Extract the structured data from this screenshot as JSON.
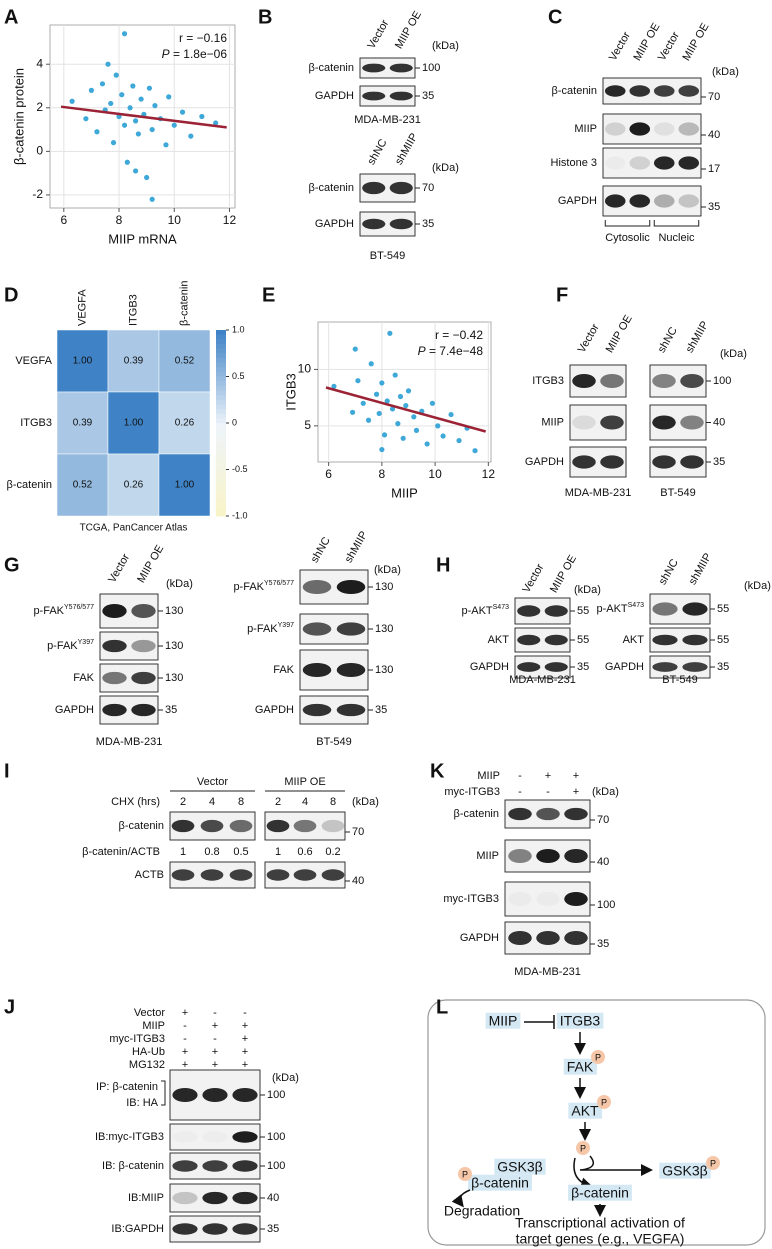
{
  "panels": {
    "A": {
      "letter": "A",
      "xlabel": "MIIP mRNA",
      "ylabel": "β-catenin  protein",
      "r_label": "r = −0.16",
      "p_symbol": "P",
      "p_text": " = 1.8e−06",
      "xlim": [
        5.5,
        12.2
      ],
      "ylim": [
        -2.6,
        5.8
      ],
      "xticks": [
        6,
        8,
        10,
        12
      ],
      "yticks": [
        -2,
        0,
        2,
        4
      ],
      "color": "#3ea8d8",
      "fit_color": "#9b2335",
      "x": [
        6.3,
        6.8,
        7.0,
        7.2,
        7.4,
        7.5,
        7.7,
        7.8,
        7.9,
        8.0,
        8.1,
        8.2,
        8.3,
        8.4,
        8.5,
        8.6,
        8.7,
        8.8,
        8.9,
        9.0,
        9.1,
        9.2,
        9.3,
        9.5,
        9.7,
        9.8,
        10.0,
        10.3,
        10.6,
        11.0,
        11.5,
        8.2,
        9.2,
        7.6,
        8.6
      ],
      "y": [
        2.3,
        1.5,
        2.8,
        0.9,
        3.1,
        1.9,
        2.2,
        0.4,
        3.5,
        1.6,
        2.6,
        1.2,
        -0.5,
        2.0,
        3.0,
        1.4,
        0.8,
        2.4,
        1.7,
        -1.2,
        2.9,
        1.0,
        2.1,
        1.5,
        0.3,
        2.5,
        1.2,
        1.8,
        0.7,
        1.6,
        1.3,
        5.4,
        -2.2,
        4.0,
        -0.9
      ],
      "fit": {
        "x": [
          5.9,
          11.9
        ],
        "y": [
          2.05,
          1.1
        ]
      }
    },
    "B": {
      "letter": "B",
      "blots": [
        {
          "lanes": [
            "Vector",
            "MIIP OE"
          ],
          "kda_header": "(kDa)",
          "rows": [
            {
              "label": "β-catenin",
              "kda": 100
            },
            {
              "label": "GAPDH",
              "kda": 35
            }
          ],
          "cell": "MDA-MB-231"
        },
        {
          "lanes": [
            "shNC",
            "shMIIP"
          ],
          "kda_header": "(kDa)",
          "rows": [
            {
              "label": "β-catenin",
              "kda": 70
            },
            {
              "label": "GAPDH",
              "kda": 35
            }
          ],
          "cell": "BT-549"
        }
      ]
    },
    "C": {
      "letter": "C",
      "blots": [
        {
          "lanes": [
            "Vector",
            "MIIP OE",
            "Vector",
            "MIIP OE"
          ],
          "kda_header": "(kDa)",
          "rows": [
            {
              "label": "β-catenin",
              "kda": 70
            },
            {
              "label": "MIIP",
              "kda": 40
            },
            {
              "label": "Histone 3",
              "kda": 17
            },
            {
              "label": "GAPDH",
              "kda": 35
            }
          ]
        }
      ],
      "groups": [
        "Cytosolic",
        "Nucleic"
      ]
    },
    "D": {
      "letter": "D",
      "columns": [
        "VEGFA",
        "ITGB3",
        "β-catenin"
      ],
      "rows": [
        "VEGFA",
        "ITGB3",
        "β-catenin"
      ],
      "values": [
        [
          1,
          0.39,
          0.52
        ],
        [
          0.39,
          1,
          0.26
        ],
        [
          0.52,
          0.26,
          1
        ]
      ],
      "value_labels": [
        [
          "1.00",
          "0.39",
          "0.52"
        ],
        [
          "0.39",
          "1.00",
          "0.26"
        ],
        [
          "0.52",
          "0.26",
          "1.00"
        ]
      ],
      "colorbar_lim": [
        -1,
        1
      ],
      "colorbar_ticks": [
        {
          "value": 1,
          "label": "1.0"
        },
        0.5,
        0,
        -0.5,
        {
          "value": -1,
          "label": "-1.0"
        }
      ],
      "colormap": [
        "#f8f4c6",
        "#eef4fa",
        "#3f83c6"
      ],
      "caption": "TCGA, PanCancer Atlas"
    },
    "E": {
      "letter": "E",
      "xlabel": "MIIP",
      "ylabel": "ITGB3",
      "r_label": "r = −0.42",
      "p_symbol": "P",
      "p_text": " = 7.4e−48",
      "xlim": [
        5.6,
        12.1
      ],
      "ylim": [
        1.8,
        14.2
      ],
      "xticks": [
        6,
        8,
        10,
        12
      ],
      "yticks": [
        5,
        10
      ],
      "color": "#3ea8d8",
      "fit_color": "#9b2335",
      "x": [
        6.2,
        6.9,
        7.1,
        7.3,
        7.5,
        7.6,
        7.8,
        7.9,
        8.0,
        8.1,
        8.2,
        8.3,
        8.4,
        8.5,
        8.6,
        8.7,
        8.8,
        8.9,
        9.0,
        9.2,
        9.3,
        9.5,
        9.7,
        9.9,
        10.1,
        10.3,
        10.6,
        10.9,
        11.2,
        11.5,
        7.0,
        8.0
      ],
      "y": [
        8.5,
        6.2,
        9.0,
        7.0,
        5.5,
        10.5,
        7.8,
        6.1,
        8.8,
        4.2,
        7.2,
        13.2,
        6.5,
        9.5,
        5.2,
        7.6,
        3.9,
        6.8,
        8.1,
        5.8,
        4.6,
        6.3,
        3.4,
        7.0,
        5.0,
        4.1,
        6.0,
        3.7,
        4.8,
        2.8,
        11.8,
        2.9
      ],
      "fit": {
        "x": [
          5.9,
          11.9
        ],
        "y": [
          8.4,
          4.5
        ]
      }
    },
    "F": {
      "letter": "F",
      "blots": [
        {
          "lanes": [
            "Vector",
            "MIIP OE"
          ],
          "rows": [
            {
              "label": "ITGB3"
            },
            {
              "label": "MIIP"
            },
            {
              "label": "GAPDH"
            }
          ],
          "cell": "MDA-MB-231"
        },
        {
          "lanes": [
            "shNC",
            "shMIIP"
          ],
          "kda_header": "(kDa)",
          "rows": [
            {
              "kda": 100
            },
            {
              "kda": 40
            },
            {
              "kda": 35
            }
          ],
          "cell": "BT-549"
        }
      ]
    },
    "G": {
      "letter": "G",
      "blots": [
        {
          "lanes": [
            "Vector",
            "MIIP OE"
          ],
          "kda_header": "(kDa)",
          "rows": [
            {
              "label": "p-FAK",
              "sup": "Y576/577",
              "kda": 130
            },
            {
              "label": "p-FAK",
              "sup": "Y397",
              "kda": 130
            },
            {
              "label": "FAK",
              "kda": 130
            },
            {
              "label": "GAPDH",
              "kda": 35
            }
          ],
          "cell": "MDA-MB-231"
        },
        {
          "lanes": [
            "shNC",
            "shMIIP"
          ],
          "kda_header": "(kDa)",
          "rows": [
            {
              "label": "p-FAK",
              "sup": "Y576/577",
              "kda": 130
            },
            {
              "label": "p-FAK",
              "sup": "Y397",
              "kda": 130
            },
            {
              "label": "FAK",
              "kda": 130
            },
            {
              "label": "GAPDH",
              "kda": 35
            }
          ],
          "cell": "BT-549"
        }
      ]
    },
    "H": {
      "letter": "H",
      "blots": [
        {
          "lanes": [
            "Vector",
            "MIIP OE"
          ],
          "kda_header": "(kDa)",
          "rows": [
            {
              "label": "p-AKT",
              "sup": "S473",
              "kda": 55
            },
            {
              "label": "AKT",
              "kda": 55
            },
            {
              "label": "GAPDH",
              "kda": 35
            }
          ],
          "cell": "MDA-MB-231"
        },
        {
          "lanes": [
            "shNC",
            "shMIIP"
          ],
          "kda_header": "(kDa)",
          "rows": [
            {
              "label": "p-AKT",
              "sup": "S473",
              "kda": 55
            },
            {
              "label": "AKT",
              "kda": 55
            },
            {
              "label": "GAPDH",
              "kda": 35
            }
          ],
          "cell": "BT-549"
        }
      ]
    },
    "I": {
      "letter": "I",
      "groups": [
        "Vector",
        "MIIP OE"
      ],
      "chx_label": "CHX (hrs)",
      "chx": [
        2,
        4,
        8,
        2,
        4,
        8
      ],
      "blots": [
        {
          "kda_header": "(kDa)",
          "rows": [
            {
              "label": "β-catenin",
              "kda": 70
            },
            {
              "label": "ACTB",
              "kda": 40
            }
          ]
        }
      ],
      "ratio_label": "β-catenin/ACTB",
      "ratios": [
        1,
        0.8,
        0.5,
        1,
        0.6,
        0.2
      ]
    },
    "K": {
      "letter": "K",
      "conditions": [
        {
          "label": "MIIP",
          "signs": [
            "-",
            "+",
            "+"
          ]
        },
        {
          "label": "myc-ITGB3",
          "signs": [
            "-",
            "-",
            "+"
          ]
        }
      ],
      "blots": [
        {
          "kda_header": "(kDa)",
          "rows": [
            {
              "label": "β-catenin",
              "kda": 70
            },
            {
              "label": "MIIP",
              "kda": 40
            },
            {
              "label": "myc-ITGB3",
              "kda": 100
            },
            {
              "label": "GAPDH",
              "kda": 35
            }
          ],
          "cell": "MDA-MB-231"
        }
      ]
    },
    "J": {
      "letter": "J",
      "conditions": [
        {
          "label": "Vector",
          "signs": [
            "+",
            "-",
            "-"
          ]
        },
        {
          "label": "MIIP",
          "signs": [
            "-",
            "+",
            "+"
          ]
        },
        {
          "label": "myc-ITGB3",
          "signs": [
            "-",
            "-",
            "+"
          ]
        },
        {
          "label": "HA-Ub",
          "signs": [
            "+",
            "+",
            "+"
          ]
        },
        {
          "label": "MG132",
          "signs": [
            "+",
            "+",
            "+"
          ]
        }
      ],
      "blots": [
        {
          "kda_header": "(kDa)",
          "rows": [
            {
              "label": "IP: β-catenin",
              "label2": "IB: HA",
              "kda": 100
            },
            {
              "label": "IB:myc-ITGB3",
              "kda": 100
            },
            {
              "label": "IB: β-catenin",
              "kda": 100
            },
            {
              "label": "IB:MIIP",
              "kda": 40
            },
            {
              "label": "IB:GAPDH",
              "kda": 35
            }
          ]
        }
      ]
    },
    "L": {
      "letter": "L",
      "phospho": "P",
      "nodes": {
        "miip": "MIIP",
        "itgb3": "ITGB3",
        "fak": "FAK",
        "akt": "AKT",
        "gsk_bound": "GSK3β",
        "bcat_bound": "β-catenin",
        "gsk_free": "GSK3β",
        "bcat_free": "β-catenin",
        "degradation": "Degradation",
        "outcome_1": "Transcriptional activation of",
        "outcome_2": "target genes (e.g., VEGFA)"
      }
    }
  }
}
